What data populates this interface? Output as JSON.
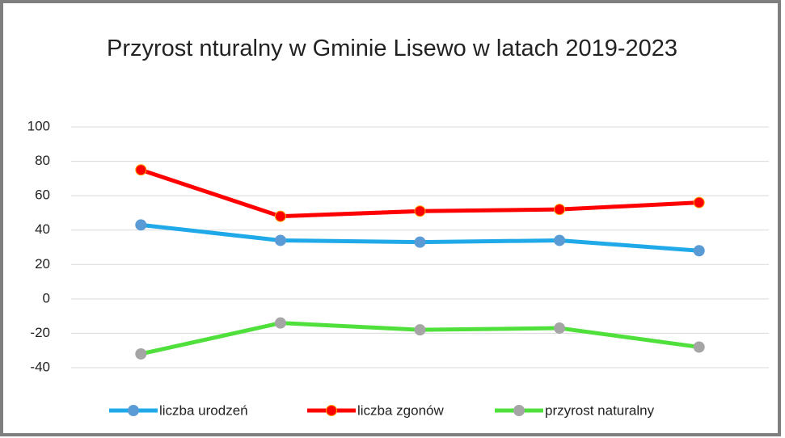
{
  "chart_data": {
    "type": "line",
    "title": "Przyrost nturalny w Gminie Lisewo w latach 2019-2023",
    "categories": [
      null,
      null,
      null,
      null,
      null
    ],
    "series": [
      {
        "name": "liczba urodzeń",
        "color": "#1fa9e8",
        "marker_color": "#5b9bd5",
        "values": [
          43,
          34,
          33,
          34,
          28
        ]
      },
      {
        "name": "liczba zgonów",
        "color": "#ff0000",
        "marker_color": "#ff0000",
        "values": [
          75,
          48,
          51,
          52,
          56
        ]
      },
      {
        "name": "przyrost naturalny",
        "color": "#4fe03c",
        "marker_color": "#a5a5a5",
        "values": [
          -32,
          -14,
          -18,
          -17,
          -28
        ]
      }
    ],
    "ylim": [
      -40,
      100
    ],
    "yticks": [
      -40,
      -20,
      0,
      20,
      40,
      60,
      80,
      100
    ],
    "grid": true,
    "legend": "bottom"
  }
}
